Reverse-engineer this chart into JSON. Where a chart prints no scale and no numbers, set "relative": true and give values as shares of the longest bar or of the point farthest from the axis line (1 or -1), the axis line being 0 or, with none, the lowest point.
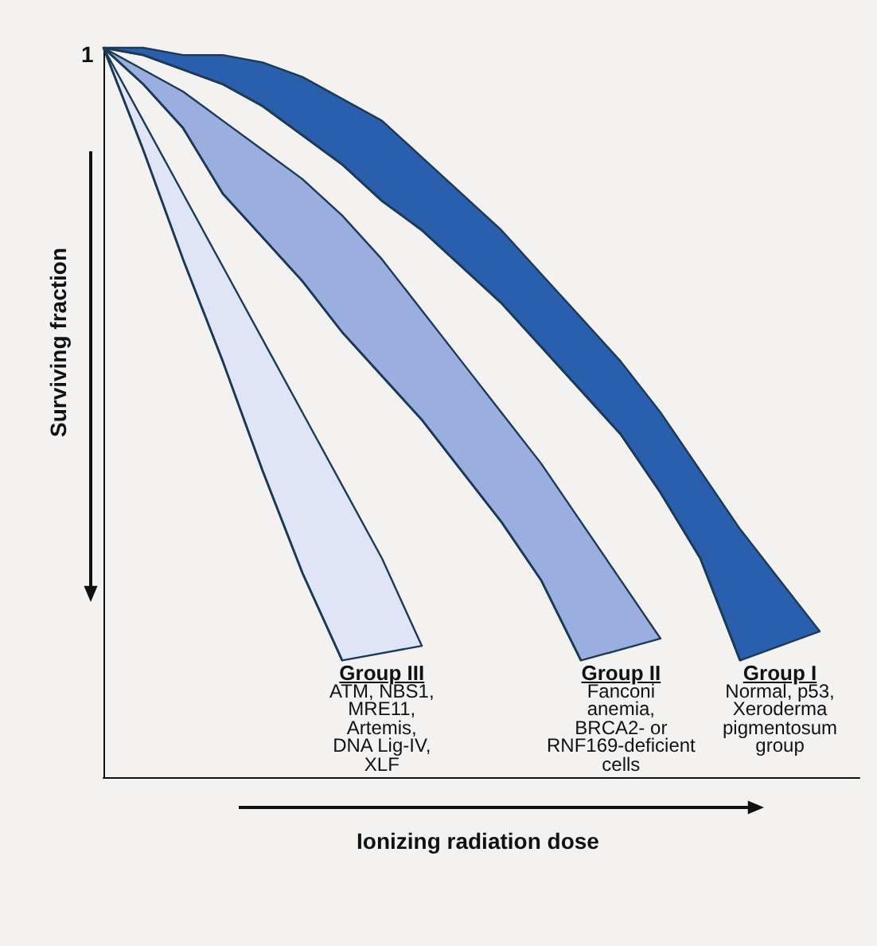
{
  "chart_data": {
    "type": "area",
    "relative": true,
    "ylabel": "Surviving fraction",
    "xlabel": "Ionizing radiation dose",
    "categories": [
      null,
      null,
      null,
      null,
      null,
      null,
      null,
      null,
      null,
      null,
      null,
      null,
      null,
      null,
      null,
      null,
      null,
      null,
      null,
      null
    ],
    "series": [
      {
        "name": "Group III",
        "color": "#dfe5f7",
        "values": [
          1,
          0.9,
          0.8,
          0.7,
          0.6,
          0.5,
          0.4,
          0.3,
          0.18,
          null,
          null,
          null,
          null,
          null,
          null,
          null,
          null,
          null,
          null,
          null
        ]
      },
      {
        "type": "line",
        "color": "#1c3a55",
        "values": [
          1,
          0.86,
          0.71,
          0.57,
          0.42,
          0.28,
          0.16,
          null,
          null,
          null,
          null,
          null,
          null,
          null,
          null,
          null,
          null,
          null,
          null,
          null
        ]
      },
      {
        "name": "Group II",
        "color": "#9aaee0",
        "values": [
          1,
          0.97,
          0.94,
          0.9,
          0.86,
          0.82,
          0.77,
          0.71,
          0.64,
          0.57,
          0.5,
          0.43,
          0.35,
          0.27,
          0.19,
          null,
          null,
          null,
          null,
          null
        ]
      },
      {
        "type": "line",
        "color": "#1c3a55",
        "values": [
          1,
          0.95,
          0.89,
          0.8,
          0.74,
          0.68,
          0.61,
          0.55,
          0.49,
          0.42,
          0.35,
          0.27,
          0.16,
          null,
          null,
          null,
          null,
          null,
          null,
          null
        ]
      },
      {
        "name": "Group I",
        "color": "#2a5fae",
        "values": [
          1,
          1,
          0.99,
          0.99,
          0.98,
          0.96,
          0.93,
          0.9,
          0.85,
          0.8,
          0.75,
          0.69,
          0.63,
          0.57,
          0.5,
          0.42,
          0.34,
          0.27,
          0.2,
          null
        ]
      },
      {
        "type": "line",
        "color": "#1c3a55",
        "values": [
          1,
          0.99,
          0.97,
          0.95,
          0.92,
          0.88,
          0.84,
          0.79,
          0.75,
          0.7,
          0.65,
          0.59,
          0.53,
          0.47,
          0.39,
          0.3,
          0.16,
          null,
          null,
          null
        ]
      }
    ],
    "annotations": [
      "1",
      "ATM, NBS1,\nMRE11,\nArtemis,\nDNA Lig-IV,\nXLF",
      "Fanconi\nanemia,\nBRCA2- or\nRNF169-deficient\ncells",
      "Normal, p53,\nXeroderma\npigmentosum\ngroup"
    ]
  }
}
